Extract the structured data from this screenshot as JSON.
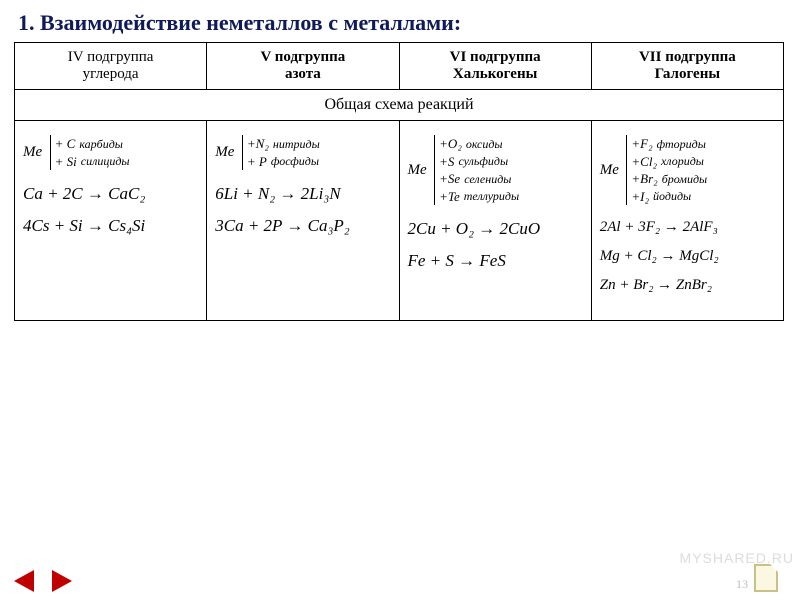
{
  "title": "1. Взаимодействие неметаллов с металлами:",
  "headers": {
    "c1a": "IV подгруппа",
    "c1b": "углерода",
    "c2a": "V подгруппа",
    "c2b": "азота",
    "c3a": "VI подгруппа",
    "c3b": "Халькогены",
    "c4a": "VII подгруппа",
    "c4b": "Галогены"
  },
  "scheme_label": "Общая схема реакций",
  "me": "Me",
  "col1": {
    "r1": "+ C",
    "p1": "карбиды",
    "r2": "+ Si",
    "p2": "силициды",
    "eq1": "Ca + 2C → CaC₂",
    "eq2": "4Cs + Si → Cs₄Si"
  },
  "col2": {
    "r1": "+N₂",
    "p1": "нитриды",
    "r2": "+ P",
    "p2": "фосфиды",
    "eq1": "6Li + N₂ → 2Li₃N",
    "eq2": "3Ca + 2P → Ca₃P₂"
  },
  "col3": {
    "r1": "+O₂",
    "p1": "оксиды",
    "r2": "+S",
    "p2": "сульфиды",
    "r3": "+Se",
    "p3": "селениды",
    "r4": "+Te",
    "p4": "теллуриды",
    "eq1": "2Cu + O₂ → 2CuO",
    "eq2": "Fe + S → FeS"
  },
  "col4": {
    "r1": "+F₂",
    "p1": "фториды",
    "r2": "+Cl₂",
    "p2": "хлориды",
    "r3": "+Br₂",
    "p3": "бромиды",
    "r4": "+I₂",
    "p4": "йодиды",
    "eq1": "2Al + 3F₂ → 2AlF₃",
    "eq2": "Mg + Cl₂ → MgCl₂",
    "eq3": "Zn + Br₂ → ZnBr₂"
  },
  "page_num": "13",
  "watermark": "MYSHARED.RU"
}
